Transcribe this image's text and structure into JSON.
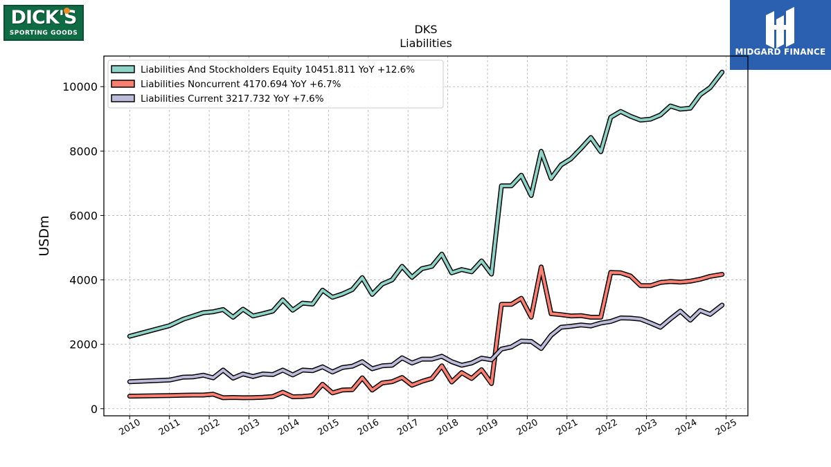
{
  "logos": {
    "left_text": "DICK'S",
    "left_subtext": "SPORTING GOODS",
    "right_text": "MIDGARD FINANCE"
  },
  "colors": {
    "equity": "#8dd3c7",
    "noncurrent": "#fb8072",
    "current": "#bebada",
    "grid": "#b0b0b0"
  },
  "chart_data": {
    "type": "line",
    "title": "DKS",
    "subtitle": "Liabilities",
    "ylabel": "USDm",
    "xlabel": "",
    "xlim": [
      2009.35,
      2025.55
    ],
    "ylim": [
      -220,
      10950
    ],
    "grid": true,
    "legend_position": "top-left",
    "x_ticks": [
      2010,
      2011,
      2012,
      2013,
      2014,
      2015,
      2016,
      2017,
      2018,
      2019,
      2020,
      2021,
      2022,
      2023,
      2024,
      2025
    ],
    "y_ticks": [
      0,
      2000,
      4000,
      6000,
      8000,
      10000
    ],
    "series": [
      {
        "name": "Liabilities And Stockholders Equity  10451.811 YoY +12.6%",
        "color": "#8dd3c7",
        "points": [
          [
            2010.0,
            2250
          ],
          [
            2011.0,
            2580
          ],
          [
            2011.35,
            2780
          ],
          [
            2011.6,
            2880
          ],
          [
            2011.85,
            2980
          ],
          [
            2012.1,
            3010
          ],
          [
            2012.35,
            3080
          ],
          [
            2012.6,
            2840
          ],
          [
            2012.85,
            3090
          ],
          [
            2013.1,
            2880
          ],
          [
            2013.35,
            2950
          ],
          [
            2013.6,
            3030
          ],
          [
            2013.85,
            3380
          ],
          [
            2014.1,
            3060
          ],
          [
            2014.35,
            3280
          ],
          [
            2014.6,
            3250
          ],
          [
            2014.85,
            3680
          ],
          [
            2015.1,
            3460
          ],
          [
            2015.35,
            3560
          ],
          [
            2015.6,
            3700
          ],
          [
            2015.85,
            4070
          ],
          [
            2016.1,
            3550
          ],
          [
            2016.35,
            3870
          ],
          [
            2016.6,
            4000
          ],
          [
            2016.85,
            4420
          ],
          [
            2017.1,
            4080
          ],
          [
            2017.35,
            4350
          ],
          [
            2017.6,
            4420
          ],
          [
            2017.85,
            4800
          ],
          [
            2018.1,
            4220
          ],
          [
            2018.35,
            4320
          ],
          [
            2018.6,
            4250
          ],
          [
            2018.85,
            4590
          ],
          [
            2019.1,
            4180
          ],
          [
            2019.35,
            6920
          ],
          [
            2019.6,
            6920
          ],
          [
            2019.85,
            7250
          ],
          [
            2020.1,
            6620
          ],
          [
            2020.35,
            7990
          ],
          [
            2020.6,
            7150
          ],
          [
            2020.85,
            7570
          ],
          [
            2021.1,
            7760
          ],
          [
            2021.35,
            8080
          ],
          [
            2021.6,
            8420
          ],
          [
            2021.85,
            7980
          ],
          [
            2022.1,
            9050
          ],
          [
            2022.35,
            9230
          ],
          [
            2022.6,
            9080
          ],
          [
            2022.85,
            8960
          ],
          [
            2023.1,
            8990
          ],
          [
            2023.35,
            9120
          ],
          [
            2023.6,
            9400
          ],
          [
            2023.85,
            9300
          ],
          [
            2024.1,
            9330
          ],
          [
            2024.35,
            9750
          ],
          [
            2024.6,
            9970
          ],
          [
            2024.9,
            10451.811
          ]
        ]
      },
      {
        "name": "Liabilities Noncurrent  4170.694 YoY +6.7%",
        "color": "#fb8072",
        "points": [
          [
            2010.0,
            390
          ],
          [
            2011.0,
            410
          ],
          [
            2011.35,
            420
          ],
          [
            2011.6,
            425
          ],
          [
            2011.85,
            425
          ],
          [
            2012.1,
            450
          ],
          [
            2012.35,
            340
          ],
          [
            2012.6,
            350
          ],
          [
            2012.85,
            340
          ],
          [
            2013.1,
            345
          ],
          [
            2013.35,
            355
          ],
          [
            2013.6,
            380
          ],
          [
            2013.85,
            510
          ],
          [
            2014.1,
            370
          ],
          [
            2014.35,
            380
          ],
          [
            2014.6,
            410
          ],
          [
            2014.85,
            760
          ],
          [
            2015.1,
            490
          ],
          [
            2015.35,
            580
          ],
          [
            2015.6,
            590
          ],
          [
            2015.85,
            960
          ],
          [
            2016.1,
            580
          ],
          [
            2016.35,
            800
          ],
          [
            2016.6,
            840
          ],
          [
            2016.85,
            970
          ],
          [
            2017.1,
            730
          ],
          [
            2017.35,
            850
          ],
          [
            2017.6,
            940
          ],
          [
            2017.85,
            1330
          ],
          [
            2018.1,
            830
          ],
          [
            2018.35,
            1120
          ],
          [
            2018.6,
            940
          ],
          [
            2018.85,
            1210
          ],
          [
            2019.1,
            780
          ],
          [
            2019.35,
            3240
          ],
          [
            2019.6,
            3240
          ],
          [
            2019.85,
            3430
          ],
          [
            2020.1,
            2840
          ],
          [
            2020.35,
            4400
          ],
          [
            2020.6,
            2950
          ],
          [
            2020.85,
            2920
          ],
          [
            2021.1,
            2880
          ],
          [
            2021.35,
            2890
          ],
          [
            2021.6,
            2840
          ],
          [
            2021.85,
            2840
          ],
          [
            2022.1,
            4230
          ],
          [
            2022.35,
            4220
          ],
          [
            2022.6,
            4120
          ],
          [
            2022.85,
            3820
          ],
          [
            2023.1,
            3820
          ],
          [
            2023.35,
            3920
          ],
          [
            2023.6,
            3950
          ],
          [
            2023.85,
            3930
          ],
          [
            2024.1,
            3960
          ],
          [
            2024.35,
            4020
          ],
          [
            2024.6,
            4110
          ],
          [
            2024.9,
            4170.694
          ]
        ]
      },
      {
        "name": "Liabilities Current  3217.732 YoY +7.6%",
        "color": "#bebada",
        "points": [
          [
            2010.0,
            840
          ],
          [
            2011.0,
            890
          ],
          [
            2011.35,
            980
          ],
          [
            2011.6,
            990
          ],
          [
            2011.85,
            1040
          ],
          [
            2012.1,
            960
          ],
          [
            2012.35,
            1200
          ],
          [
            2012.6,
            950
          ],
          [
            2012.85,
            1080
          ],
          [
            2013.1,
            1000
          ],
          [
            2013.35,
            1080
          ],
          [
            2013.6,
            1060
          ],
          [
            2013.85,
            1200
          ],
          [
            2014.1,
            1050
          ],
          [
            2014.35,
            1200
          ],
          [
            2014.6,
            1180
          ],
          [
            2014.85,
            1300
          ],
          [
            2015.1,
            1140
          ],
          [
            2015.35,
            1280
          ],
          [
            2015.6,
            1320
          ],
          [
            2015.85,
            1460
          ],
          [
            2016.1,
            1240
          ],
          [
            2016.35,
            1330
          ],
          [
            2016.6,
            1350
          ],
          [
            2016.85,
            1580
          ],
          [
            2017.1,
            1420
          ],
          [
            2017.35,
            1540
          ],
          [
            2017.6,
            1540
          ],
          [
            2017.85,
            1630
          ],
          [
            2018.1,
            1460
          ],
          [
            2018.35,
            1350
          ],
          [
            2018.6,
            1420
          ],
          [
            2018.85,
            1570
          ],
          [
            2019.1,
            1520
          ],
          [
            2019.35,
            1850
          ],
          [
            2019.6,
            1920
          ],
          [
            2019.85,
            2100
          ],
          [
            2020.1,
            2090
          ],
          [
            2020.35,
            1870
          ],
          [
            2020.6,
            2280
          ],
          [
            2020.85,
            2530
          ],
          [
            2021.1,
            2560
          ],
          [
            2021.35,
            2600
          ],
          [
            2021.6,
            2570
          ],
          [
            2021.85,
            2660
          ],
          [
            2022.1,
            2710
          ],
          [
            2022.35,
            2820
          ],
          [
            2022.6,
            2810
          ],
          [
            2022.85,
            2780
          ],
          [
            2023.1,
            2660
          ],
          [
            2023.35,
            2530
          ],
          [
            2023.6,
            2790
          ],
          [
            2023.85,
            3030
          ],
          [
            2024.1,
            2750
          ],
          [
            2024.35,
            3050
          ],
          [
            2024.6,
            2930
          ],
          [
            2024.9,
            3217.732
          ]
        ]
      }
    ]
  }
}
